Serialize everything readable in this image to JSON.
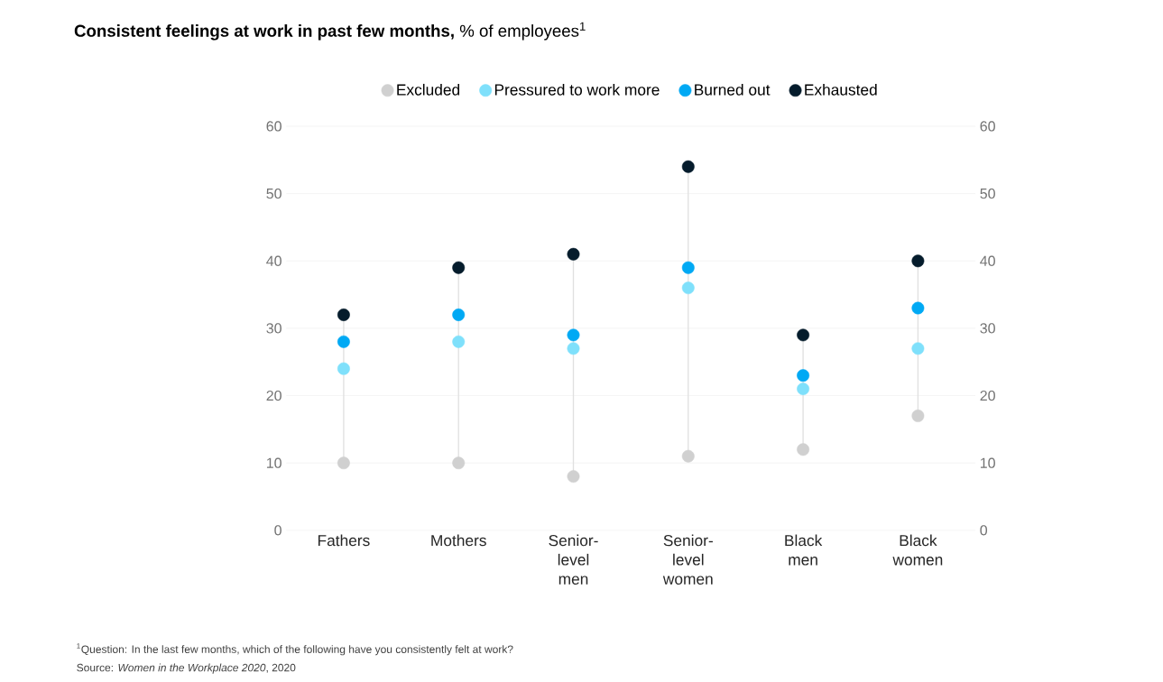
{
  "chart_data": {
    "type": "scatter",
    "title": "**Consistent feelings at work in past few months,** % of employees$^{1}$",
    "categories": [
      "Fathers",
      "Mothers",
      "Senior-level men",
      "Senior-level women",
      "Black men",
      "Black women"
    ],
    "series": [
      {
        "name": "Excluded",
        "color": "#d0d0d0",
        "values": [
          10,
          10,
          8,
          11,
          12,
          17
        ]
      },
      {
        "name": "Pressured to work more",
        "color": "#7fe0fb",
        "values": [
          24,
          28,
          27,
          36,
          21,
          27
        ]
      },
      {
        "name": "Burned out",
        "color": "#00a9f4",
        "values": [
          28,
          32,
          29,
          39,
          23,
          33
        ]
      },
      {
        "name": "Exhausted",
        "color": "#051c2c",
        "values": [
          32,
          39,
          41,
          54,
          29,
          40
        ]
      }
    ],
    "ylim": [
      0,
      60
    ],
    "yticks": [
      0,
      10,
      20,
      30,
      40,
      50,
      60
    ],
    "y2lim": [
      0,
      60
    ],
    "y2ticks": [
      0,
      10,
      20,
      30,
      40,
      50,
      60
    ],
    "grid": "y",
    "legend": "top",
    "marker": "circle",
    "annotations": [
      "$^{1}$Question: In the last few months, which of the following have you consistently felt at work?",
      "Source: *Women in the Workplace 2020*, 2020"
    ]
  }
}
